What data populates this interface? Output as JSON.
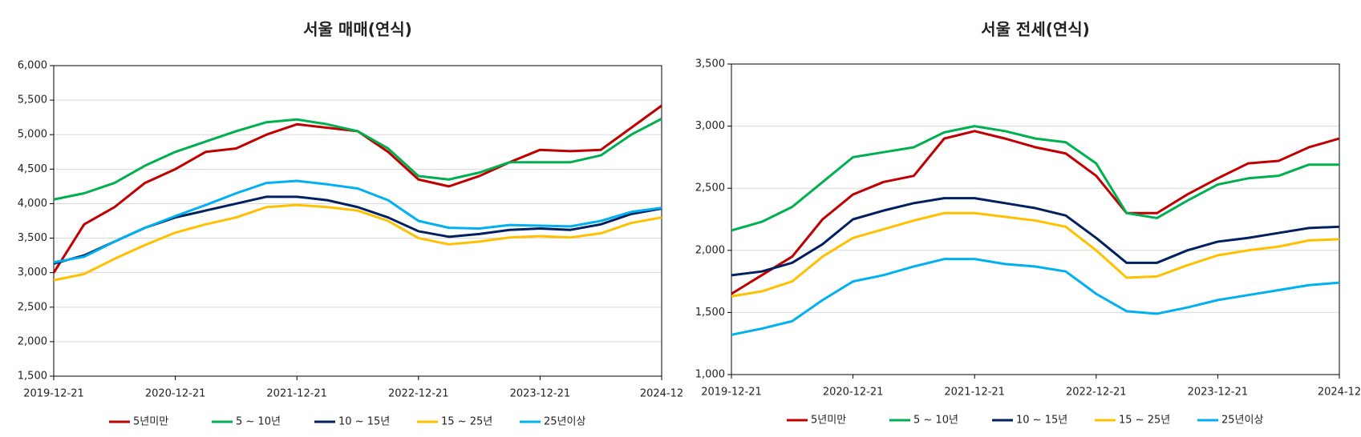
{
  "chart_data": [
    {
      "type": "line",
      "title": "서울 매매(연식)",
      "categories": [
        "2019-12-21",
        null,
        null,
        null,
        "2020-12-21",
        null,
        null,
        null,
        "2021-12-21",
        null,
        null,
        null,
        "2022-12-21",
        null,
        null,
        null,
        "2023-12-21",
        null,
        null,
        null,
        "2024-12"
      ],
      "ylim": [
        1500,
        6000
      ],
      "yticks": [
        {
          "value": 1500,
          "label": "1,500"
        },
        {
          "value": 2000,
          "label": "2,000"
        },
        {
          "value": 2500,
          "label": "2,500"
        },
        {
          "value": 3000,
          "label": "3,000"
        },
        {
          "value": 3500,
          "label": "3,500"
        },
        {
          "value": 4000,
          "label": "4,000"
        },
        {
          "value": 4500,
          "label": "4,500"
        },
        {
          "value": 5000,
          "label": "5,000"
        },
        {
          "value": 5500,
          "label": "5,500"
        },
        {
          "value": 6000,
          "label": "6,000"
        }
      ],
      "grid": true,
      "series": [
        {
          "name": "5년미만",
          "color": "#c00000",
          "values": [
            3000,
            3700,
            3950,
            4300,
            4500,
            4750,
            4800,
            5000,
            5150,
            5100,
            5050,
            4750,
            4350,
            4250,
            4400,
            4600,
            4780,
            4760,
            4780,
            5100,
            5420
          ]
        },
        {
          "name": "5 ~ 10년",
          "color": "#00b050",
          "values": [
            4060,
            4150,
            4300,
            4550,
            4750,
            4900,
            5050,
            5180,
            5220,
            5150,
            5050,
            4800,
            4400,
            4350,
            4450,
            4600,
            4600,
            4600,
            4700,
            5000,
            5230
          ]
        },
        {
          "name": "10 ~ 15년",
          "color": "#002060",
          "values": [
            3130,
            3250,
            3450,
            3650,
            3800,
            3900,
            4000,
            4100,
            4100,
            4050,
            3950,
            3800,
            3600,
            3520,
            3560,
            3620,
            3640,
            3620,
            3700,
            3850,
            3930
          ]
        },
        {
          "name": "15 ~ 25년",
          "color": "#ffc000",
          "values": [
            2890,
            2980,
            3200,
            3400,
            3580,
            3700,
            3800,
            3950,
            3980,
            3950,
            3900,
            3750,
            3500,
            3410,
            3450,
            3510,
            3530,
            3510,
            3570,
            3720,
            3800
          ]
        },
        {
          "name": "25년이상",
          "color": "#00b0f0",
          "values": [
            3150,
            3230,
            3450,
            3650,
            3820,
            3980,
            4150,
            4300,
            4330,
            4280,
            4220,
            4050,
            3750,
            3650,
            3640,
            3690,
            3680,
            3670,
            3750,
            3880,
            3940
          ]
        }
      ]
    },
    {
      "type": "line",
      "title": "서울 전세(연식)",
      "categories": [
        "2019-12-21",
        null,
        null,
        null,
        "2020-12-21",
        null,
        null,
        null,
        "2021-12-21",
        null,
        null,
        null,
        "2022-12-21",
        null,
        null,
        null,
        "2023-12-21",
        null,
        null,
        null,
        "2024-12"
      ],
      "ylim": [
        1000,
        3500
      ],
      "yticks": [
        {
          "value": 1000,
          "label": "1,000"
        },
        {
          "value": 1500,
          "label": "1,500"
        },
        {
          "value": 2000,
          "label": "2,000"
        },
        {
          "value": 2500,
          "label": "2,500"
        },
        {
          "value": 3000,
          "label": "3,000"
        },
        {
          "value": 3500,
          "label": "3,500"
        }
      ],
      "grid": true,
      "series": [
        {
          "name": "5년미만",
          "color": "#c00000",
          "values": [
            1650,
            1800,
            1950,
            2250,
            2450,
            2550,
            2600,
            2900,
            2960,
            2900,
            2830,
            2780,
            2600,
            2300,
            2300,
            2450,
            2580,
            2700,
            2720,
            2830,
            2900
          ]
        },
        {
          "name": "5 ~ 10년",
          "color": "#00b050",
          "values": [
            2160,
            2230,
            2350,
            2550,
            2750,
            2790,
            2830,
            2950,
            3000,
            2960,
            2900,
            2870,
            2700,
            2300,
            2260,
            2400,
            2530,
            2580,
            2600,
            2690,
            2690
          ]
        },
        {
          "name": "10 ~ 15년",
          "color": "#002060",
          "values": [
            1800,
            1830,
            1900,
            2050,
            2250,
            2320,
            2380,
            2420,
            2420,
            2380,
            2340,
            2280,
            2100,
            1900,
            1900,
            2000,
            2070,
            2100,
            2140,
            2180,
            2190
          ]
        },
        {
          "name": "15 ~ 25년",
          "color": "#ffc000",
          "values": [
            1630,
            1670,
            1750,
            1950,
            2100,
            2170,
            2240,
            2300,
            2300,
            2270,
            2240,
            2190,
            2000,
            1780,
            1790,
            1880,
            1960,
            2000,
            2030,
            2080,
            2090
          ]
        },
        {
          "name": "25년이상",
          "color": "#00b0f0",
          "values": [
            1320,
            1370,
            1430,
            1600,
            1750,
            1800,
            1870,
            1930,
            1930,
            1890,
            1870,
            1830,
            1650,
            1510,
            1490,
            1540,
            1600,
            1640,
            1680,
            1720,
            1740
          ]
        }
      ]
    }
  ]
}
